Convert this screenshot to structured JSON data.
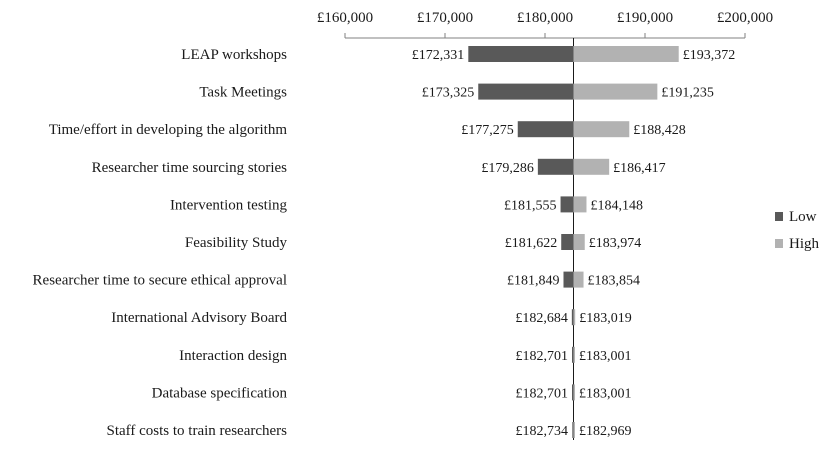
{
  "chart_data": {
    "type": "bar",
    "subtype": "tornado",
    "orientation": "horizontal",
    "base_value": 182850,
    "categories": [
      "LEAP workshops",
      "Task Meetings",
      "Time/effort in developing the algorithm",
      "Researcher time sourcing stories",
      "Intervention testing",
      "Feasibility Study",
      "Researcher time to secure ethical approval",
      "International Advisory Board",
      "Interaction design",
      "Database specification",
      "Staff costs to train researchers"
    ],
    "series": [
      {
        "name": "Low",
        "color": "#595959",
        "values": [
          172331,
          173325,
          177275,
          179286,
          181555,
          181622,
          181849,
          182684,
          182701,
          182701,
          182734
        ],
        "labels": [
          "£172,331",
          "£173,325",
          "£177,275",
          "£179,286",
          "£181,555",
          "£181,622",
          "£181,849",
          "£182,684",
          "£182,701",
          "£182,701",
          "£182,734"
        ]
      },
      {
        "name": "High",
        "color": "#b2b2b2",
        "values": [
          193372,
          191235,
          188428,
          186417,
          184148,
          183974,
          183854,
          183019,
          183001,
          183001,
          182969
        ],
        "labels": [
          "£193,372",
          "£191,235",
          "£188,428",
          "£186,417",
          "£184,148",
          "£183,974",
          "£183,854",
          "£183,019",
          "£183,001",
          "£183,001",
          "£182,969"
        ]
      }
    ],
    "xlim": [
      160000,
      200000
    ],
    "x_ticks": [
      160000,
      170000,
      180000,
      190000,
      200000
    ],
    "x_tick_labels": [
      "£160,000",
      "£170,000",
      "£180,000",
      "£190,000",
      "£200,000"
    ],
    "axis_position": "top",
    "grid": false,
    "legend_position": "right"
  }
}
